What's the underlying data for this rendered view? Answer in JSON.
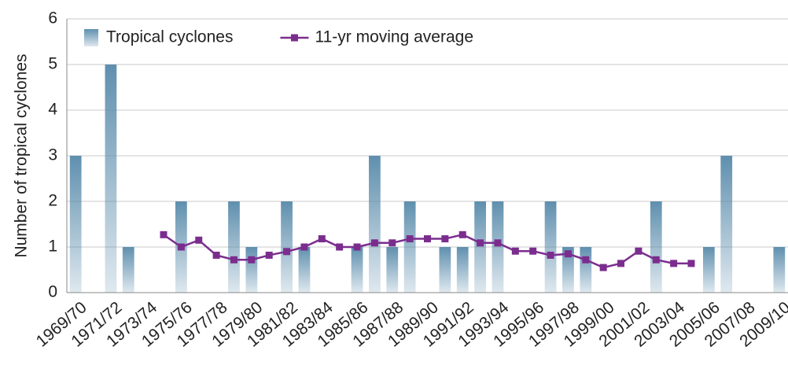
{
  "chart_data": {
    "type": "bar-line",
    "ylabel": "Number of tropical cyclones",
    "categories": [
      "1969/70",
      null,
      "1971/72",
      null,
      "1973/74",
      null,
      "1975/76",
      null,
      "1977/78",
      null,
      "1979/80",
      null,
      "1981/82",
      null,
      "1983/84",
      null,
      "1985/86",
      null,
      "1987/88",
      null,
      "1989/90",
      null,
      "1991/92",
      null,
      "1993/94",
      null,
      "1995/96",
      null,
      "1997/98",
      null,
      "1999/00",
      null,
      "2001/02",
      null,
      "2003/04",
      null,
      "2005/06",
      null,
      "2007/08",
      null,
      "2009/10"
    ],
    "series": [
      {
        "name": "Tropical cyclones",
        "type": "bar",
        "color": "#5f8fae",
        "values": [
          3,
          0,
          5,
          1,
          0,
          0,
          2,
          0,
          0,
          2,
          1,
          0,
          2,
          1,
          0,
          0,
          1,
          3,
          1,
          2,
          0,
          1,
          1,
          2,
          2,
          0,
          0,
          2,
          1,
          1,
          0,
          0,
          0,
          2,
          0,
          0,
          1,
          3,
          0,
          0,
          1
        ]
      },
      {
        "name": "11-yr moving average",
        "type": "line",
        "color": "#7b2d8e",
        "values": [
          null,
          null,
          null,
          null,
          null,
          1.27,
          1.0,
          1.15,
          0.82,
          0.72,
          0.72,
          0.82,
          0.9,
          1.0,
          1.18,
          1.0,
          1.0,
          1.09,
          1.09,
          1.18,
          1.18,
          1.18,
          1.27,
          1.09,
          1.09,
          0.91,
          0.91,
          0.82,
          0.85,
          0.72,
          0.55,
          0.64,
          0.91,
          0.72,
          0.64,
          0.64,
          null,
          null,
          null,
          null,
          null
        ]
      }
    ],
    "ylim": [
      0,
      6
    ],
    "yticks": [
      0,
      1,
      2,
      3,
      4,
      5,
      6
    ],
    "grid": true,
    "legend": "top-left"
  }
}
